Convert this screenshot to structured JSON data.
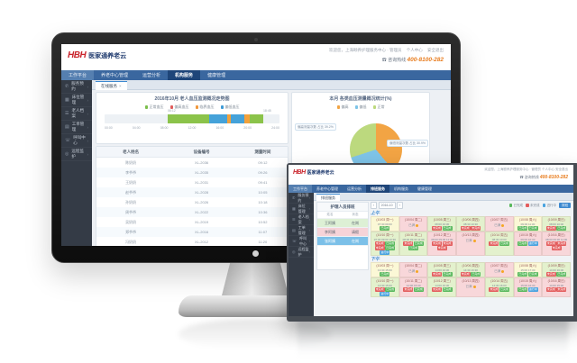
{
  "brand": {
    "logo_text": "HBH",
    "name": "医家通养老云",
    "welcome": "欢迎您，上海颐养护理服务中心 · 管理员",
    "link_profile": "个人中心",
    "link_logout": "安全退出",
    "hotline_label": "咨询热线",
    "hotline_number": "400-8100-282",
    "phone_icon": "☎",
    "accent_orange": "#e87c1e",
    "nav_blue": "#3a679f",
    "nav_active": "#1e4579"
  },
  "main": {
    "nav": {
      "items": [
        "工作平台",
        "养老中心管理",
        "运营分析",
        "机构服务",
        "健康管理"
      ],
      "active_index": 3
    },
    "sidebar": {
      "items": [
        {
          "icon": "✆",
          "label": "服务预约"
        },
        {
          "icon": "▦",
          "label": "床位管理"
        },
        {
          "icon": "☰",
          "label": "老人档案"
        },
        {
          "icon": "▤",
          "label": "工单管理"
        },
        {
          "icon": "☏",
          "label": "呼叫中心"
        },
        {
          "icon": "◎",
          "label": "远程监护"
        }
      ]
    },
    "tab": {
      "label": "在线服务",
      "close": "×"
    },
    "bar_card": {
      "type": "bar",
      "title": "2016年10月 老人血压监测概况走势图",
      "legend": [
        {
          "label": "正常血压",
          "color": "#7cbf4d"
        },
        {
          "label": "偏高血压",
          "color": "#e05c5c"
        },
        {
          "label": "临界血压",
          "color": "#f0983c"
        },
        {
          "label": "偏低血压",
          "color": "#3e9bd6"
        }
      ],
      "track_color": "#edf1f5",
      "segments": [
        {
          "color": "transparent",
          "w": 36
        },
        {
          "color": "#8bc34a",
          "w": 24
        },
        {
          "color": "#45a2d9",
          "w": 10
        },
        {
          "color": "#f2a13c",
          "w": 2
        },
        {
          "color": "#45a2d9",
          "w": 8
        },
        {
          "color": "#f2a13c",
          "w": 3
        },
        {
          "color": "#8bc34a",
          "w": 8
        }
      ],
      "notes": [
        {
          "text": "06:12",
          "x": 33
        },
        {
          "text": "18:45",
          "x": 83
        }
      ],
      "axis_ticks": [
        "00:00",
        "04:00",
        "08:00",
        "12:00",
        "16:00",
        "20:00",
        "24:00"
      ]
    },
    "pie_card": {
      "type": "pie",
      "title": "本月 各类血压测量概况统计(%)",
      "legend": [
        {
          "label": "偏高",
          "color": "#f2a444"
        },
        {
          "label": "偏低",
          "color": "#7ec4e8"
        },
        {
          "label": "正常",
          "color": "#bcd97e"
        }
      ],
      "slices": [
        {
          "label": "偏高",
          "color": "#f2a444",
          "value": 39,
          "callout": "偏高测量次数 占比 39.2%"
        },
        {
          "label": "偏低",
          "color": "#7ec4e8",
          "value": 31,
          "callout": "偏低测量次数 占比 30.9%"
        },
        {
          "label": "正常",
          "color": "#bcd97e",
          "value": 30,
          "callout": "正常测量次数 占比 29.9%"
        }
      ]
    },
    "table": {
      "headers": [
        "老人姓名",
        "设备编号",
        "测量时间"
      ],
      "rows": [
        [
          "陈奶奶",
          "XL-2036",
          "09:12"
        ],
        [
          "李爷爷",
          "XL-2035",
          "09:26"
        ],
        [
          "王奶奶",
          "XL-2031",
          "09:41"
        ],
        [
          "赵爷爷",
          "XL-2028",
          "10:05"
        ],
        [
          "孙奶奶",
          "XL-2026",
          "10:18"
        ],
        [
          "周爷爷",
          "XL-2022",
          "10:36"
        ],
        [
          "吴奶奶",
          "XL-2019",
          "10:52"
        ],
        [
          "郑爷爷",
          "XL-2016",
          "11:07"
        ],
        [
          "冯奶奶",
          "XL-2012",
          "11:20"
        ]
      ]
    }
  },
  "window2": {
    "nav": {
      "items": [
        "工作平台",
        "养老中心管理",
        "运营分析",
        "排班服务",
        "机构服务",
        "健康管理"
      ],
      "active_index": 3
    },
    "sidebar": {
      "items": [
        {
          "icon": "✆",
          "label": "服务预约"
        },
        {
          "icon": "▦",
          "label": "床位管理"
        },
        {
          "icon": "☰",
          "label": "老人档案"
        },
        {
          "icon": "▤",
          "label": "工单管理"
        },
        {
          "icon": "☏",
          "label": "呼叫中心"
        },
        {
          "icon": "◎",
          "label": "远程监护"
        }
      ]
    },
    "tab": {
      "label": "排班服务"
    },
    "panel": {
      "title": "护理人员排班",
      "columns": [
        "姓名",
        "状态"
      ],
      "rows": [
        {
          "name": "王阿姨",
          "status": "在岗",
          "tone": "green"
        },
        {
          "name": "李阿姨",
          "status": "请假",
          "tone": "pink"
        },
        {
          "name": "张阿姨",
          "status": "在岗",
          "tone": "blue"
        }
      ]
    },
    "toolbar": {
      "prev": "‹",
      "next": "›",
      "month": "2016-10",
      "legend": [
        {
          "label": "已完成",
          "color": "#58b85c"
        },
        {
          "label": "未完成",
          "color": "#e35d5d"
        },
        {
          "label": "进行中",
          "color": "#4aa3df"
        }
      ],
      "button": "排班"
    },
    "grid": {
      "groups": [
        {
          "label": "上午",
          "rows": [
            {
              "cells": [
                {
                  "bg": "y",
                  "day": "10/03 周一",
                  "times": "07:30 09:00",
                  "tags": [
                    {
                      "t": "已完成",
                      "c": "g"
                    }
                  ]
                },
                {
                  "bg": "p",
                  "day": "10/04 周二",
                  "note": "已满"
                },
                {
                  "bg": "g",
                  "day": "10/05 周三",
                  "times": "08:00 10:30",
                  "tags": [
                    {
                      "t": "未完成",
                      "c": "r"
                    },
                    {
                      "t": "已完成",
                      "c": "g"
                    }
                  ]
                },
                {
                  "bg": "g",
                  "day": "10/06 周四",
                  "times": "08:30 10:30",
                  "tags": [
                    {
                      "t": "未完成",
                      "c": "r"
                    },
                    {
                      "t": "未完成",
                      "c": "r"
                    }
                  ]
                },
                {
                  "bg": "p",
                  "day": "10/07 周五",
                  "note": "已满"
                },
                {
                  "bg": "y",
                  "day": "10/08 周六",
                  "times": "09:00 11:30",
                  "tags": [
                    {
                      "t": "已完成",
                      "c": "g"
                    },
                    {
                      "t": "已完成",
                      "c": "g"
                    }
                  ]
                },
                {
                  "bg": "g",
                  "day": "10/09 周日",
                  "times": "08:00 10:00",
                  "tags": [
                    {
                      "t": "未完成",
                      "c": "r"
                    },
                    {
                      "t": "已完成",
                      "c": "g"
                    }
                  ]
                }
              ]
            },
            {
              "cells": [
                {
                  "bg": "g",
                  "day": "10/10 周一",
                  "times": "07:30 09:00 10:30",
                  "tags": [
                    {
                      "t": "未完成",
                      "c": "r"
                    },
                    {
                      "t": "已完成",
                      "c": "g"
                    },
                    {
                      "t": "未完成",
                      "c": "r"
                    },
                    {
                      "t": "已完成",
                      "c": "g"
                    },
                    {
                      "t": "进行中",
                      "c": "b"
                    }
                  ]
                },
                {
                  "bg": "g",
                  "day": "10/11 周二",
                  "times": "08:00 09:30 11:00",
                  "tags": [
                    {
                      "t": "未完成",
                      "c": "r"
                    },
                    {
                      "t": "已完成",
                      "c": "g"
                    },
                    {
                      "t": "已完成",
                      "c": "g"
                    }
                  ]
                },
                {
                  "bg": "p",
                  "day": "10/12 周三",
                  "times": "08:00 09:30 11:00",
                  "tags": [
                    {
                      "t": "未完成",
                      "c": "r"
                    },
                    {
                      "t": "未完成",
                      "c": "r"
                    },
                    {
                      "t": "未完成",
                      "c": "r"
                    }
                  ]
                },
                {
                  "bg": "p",
                  "day": "10/13 周四",
                  "note": "已满"
                },
                {
                  "bg": "g",
                  "day": "10/14 周五",
                  "times": "08:30 10:00",
                  "tags": [
                    {
                      "t": "未完成",
                      "c": "r"
                    },
                    {
                      "t": "已完成",
                      "c": "g"
                    }
                  ]
                },
                {
                  "bg": "p",
                  "day": "10/15 周六",
                  "times": "09:00 10:30",
                  "tags": [
                    {
                      "t": "已完成",
                      "c": "g"
                    },
                    {
                      "t": "进行中",
                      "c": "b"
                    }
                  ]
                },
                {
                  "bg": "p",
                  "day": "10/16 周日",
                  "times": "08:00 09:30 11:00",
                  "tags": [
                    {
                      "t": "未完成",
                      "c": "r"
                    },
                    {
                      "t": "未完成",
                      "c": "r"
                    },
                    {
                      "t": "未完成",
                      "c": "r"
                    }
                  ]
                }
              ]
            }
          ]
        },
        {
          "label": "下午",
          "rows": [
            {
              "cells": [
                {
                  "bg": "y",
                  "day": "10/03 周一",
                  "times": "13:30 15:00",
                  "tags": [
                    {
                      "t": "已完成",
                      "c": "g"
                    }
                  ]
                },
                {
                  "bg": "p",
                  "day": "10/04 周二",
                  "note": "已满"
                },
                {
                  "bg": "g",
                  "day": "10/05 周三",
                  "times": "14:00 16:30",
                  "tags": [
                    {
                      "t": "未完成",
                      "c": "r"
                    },
                    {
                      "t": "已完成",
                      "c": "g"
                    }
                  ]
                },
                {
                  "bg": "g",
                  "day": "10/06 周四",
                  "times": "14:30 16:30",
                  "tags": [
                    {
                      "t": "未完成",
                      "c": "r"
                    },
                    {
                      "t": "已完成",
                      "c": "g"
                    }
                  ]
                },
                {
                  "bg": "p",
                  "day": "10/07 周五",
                  "note": "已满"
                },
                {
                  "bg": "y",
                  "day": "10/08 周六",
                  "times": "15:00 17:30",
                  "tags": [
                    {
                      "t": "已完成",
                      "c": "g"
                    },
                    {
                      "t": "已完成",
                      "c": "g"
                    }
                  ]
                },
                {
                  "bg": "g",
                  "day": "10/09 周日",
                  "times": "14:00 16:00",
                  "tags": [
                    {
                      "t": "未完成",
                      "c": "r"
                    },
                    {
                      "t": "已完成",
                      "c": "g"
                    }
                  ]
                }
              ]
            },
            {
              "cells": [
                {
                  "bg": "g",
                  "day": "10/10 周一",
                  "times": "13:30 15:00",
                  "tags": [
                    {
                      "t": "未完成",
                      "c": "r"
                    },
                    {
                      "t": "已完成",
                      "c": "g"
                    },
                    {
                      "t": "进行中",
                      "c": "b"
                    }
                  ]
                },
                {
                  "bg": "p",
                  "day": "10/11 周二",
                  "times": "14:00 15:30",
                  "tags": [
                    {
                      "t": "未完成",
                      "c": "r"
                    },
                    {
                      "t": "已完成",
                      "c": "g"
                    }
                  ]
                },
                {
                  "bg": "g",
                  "day": "10/12 周三",
                  "times": "14:00 16:30",
                  "tags": [
                    {
                      "t": "未完成",
                      "c": "r"
                    },
                    {
                      "t": "已完成",
                      "c": "g"
                    }
                  ]
                },
                {
                  "bg": "p",
                  "day": "10/13 周四",
                  "note": "已满"
                },
                {
                  "bg": "g",
                  "day": "10/14 周五",
                  "times": "14:30 16:00",
                  "tags": [
                    {
                      "t": "未完成",
                      "c": "r"
                    },
                    {
                      "t": "已完成",
                      "c": "g"
                    }
                  ]
                },
                {
                  "bg": "p",
                  "day": "10/15 周六",
                  "times": "15:00 16:30",
                  "tags": [
                    {
                      "t": "已完成",
                      "c": "g"
                    },
                    {
                      "t": "进行中",
                      "c": "b"
                    }
                  ]
                },
                {
                  "bg": "p",
                  "day": "10/16 周日",
                  "times": "14:00 15:30",
                  "tags": [
                    {
                      "t": "未完成",
                      "c": "r"
                    },
                    {
                      "t": "未完成",
                      "c": "r"
                    }
                  ]
                }
              ]
            }
          ]
        }
      ]
    }
  }
}
